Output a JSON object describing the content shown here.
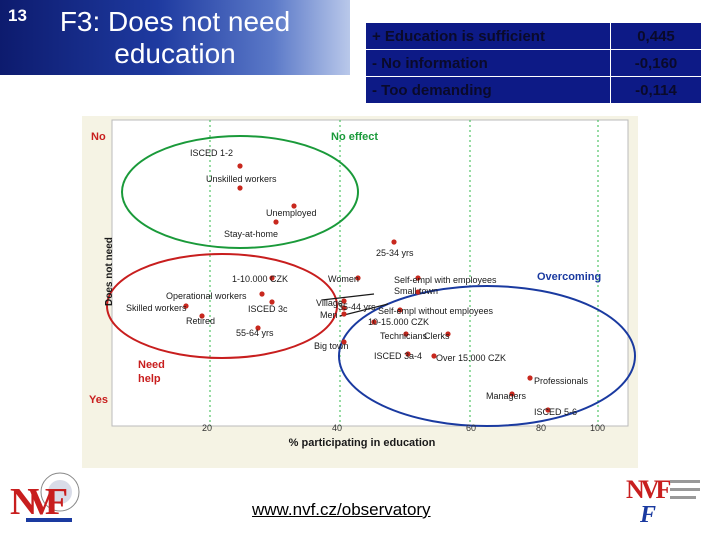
{
  "slide": {
    "number": "13",
    "title": "F3: Does not need education"
  },
  "table": {
    "rows": [
      {
        "label": "+ Education is sufficient",
        "value": "0,445"
      },
      {
        "label": "- No information",
        "value": "-0,160"
      },
      {
        "label": "- Too demanding",
        "value": "-0,114"
      }
    ]
  },
  "chart_data": {
    "type": "scatter",
    "xlabel": "% participating in education",
    "ylabel": "Does not need",
    "x_ticks": [
      "20",
      "40",
      "60",
      "80",
      "100"
    ],
    "y_top": "No",
    "y_bottom": "Yes",
    "regions": [
      {
        "label": "No effect",
        "color": "#1a9a3a"
      },
      {
        "label": "Overcoming",
        "color": "#1a3aa0"
      },
      {
        "label": "Need help",
        "color": "#c81e1e"
      }
    ],
    "points": [
      {
        "label": "ISCED 1-2"
      },
      {
        "label": "Unskilled workers"
      },
      {
        "label": "Unemployed"
      },
      {
        "label": "Stay-at-home"
      },
      {
        "label": "25-34 yrs"
      },
      {
        "label": "1-10.000 CZK"
      },
      {
        "label": "Women"
      },
      {
        "label": "Self-empl with employees"
      },
      {
        "label": "Small town"
      },
      {
        "label": "Operational workers"
      },
      {
        "label": "Skilled workers"
      },
      {
        "label": "ISCED 3c"
      },
      {
        "label": "Village"
      },
      {
        "label": "35-44 yrs"
      },
      {
        "label": "Self-empl without employees"
      },
      {
        "label": "Retired"
      },
      {
        "label": "Men"
      },
      {
        "label": "10-15.000 CZK"
      },
      {
        "label": "55-64 yrs"
      },
      {
        "label": "Technicians"
      },
      {
        "label": "Clerks"
      },
      {
        "label": "Big town"
      },
      {
        "label": "ISCED 3a-4"
      },
      {
        "label": "Over 15.000 CZK"
      },
      {
        "label": "Professionals"
      },
      {
        "label": "Managers"
      },
      {
        "label": "ISCED 5-6"
      }
    ],
    "colors": {
      "point": "#c8281e",
      "grid": "#2fb84a",
      "text": "#1a1a1a"
    }
  },
  "footer": {
    "url": "www.nvf.cz/observatory"
  },
  "logos": {
    "left": "NVF",
    "right_top": "NVF",
    "right_bottom": "F"
  }
}
